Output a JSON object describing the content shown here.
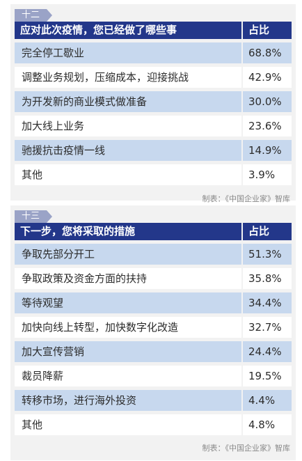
{
  "tables": [
    {
      "number": "十二",
      "header": {
        "question": "应对此次疫情，您已经做了哪些事",
        "share": "占比"
      },
      "rows": [
        {
          "label": "完全停工歇业",
          "value": "68.8%"
        },
        {
          "label": "调整业务规划，压缩成本，迎接挑战",
          "value": "42.9%"
        },
        {
          "label": "为开发新的商业模式做准备",
          "value": "30.0%"
        },
        {
          "label": "加大线上业务",
          "value": "23.6%"
        },
        {
          "label": "驰援抗击疫情一线",
          "value": "14.9%"
        },
        {
          "label": "其他",
          "value": "3.9%"
        }
      ],
      "credit": "制表：《中国企业家》智库"
    },
    {
      "number": "十三",
      "header": {
        "question": "下一步，您将采取的措施",
        "share": "占比"
      },
      "rows": [
        {
          "label": "争取先部分开工",
          "value": "51.3%"
        },
        {
          "label": "争取政策及资金方面的扶持",
          "value": "35.8%"
        },
        {
          "label": "等待观望",
          "value": "34.4%"
        },
        {
          "label": "加快向线上转型，加快数字化改造",
          "value": "32.7%"
        },
        {
          "label": "加大宣传营销",
          "value": "24.4%"
        },
        {
          "label": "裁员降薪",
          "value": "19.5%"
        },
        {
          "label": "转移市场，进行海外投资",
          "value": "4.4%"
        },
        {
          "label": "其他",
          "value": "4.8%"
        }
      ],
      "credit": "制表：《中国企业家》智库"
    }
  ],
  "colors": {
    "header_bg": "#23378a",
    "row_shaded": "#c7d8ee",
    "row_plain": "#ffffff",
    "panel_bg": "#f2f2f2",
    "number_tag": "#9aa3c7"
  }
}
